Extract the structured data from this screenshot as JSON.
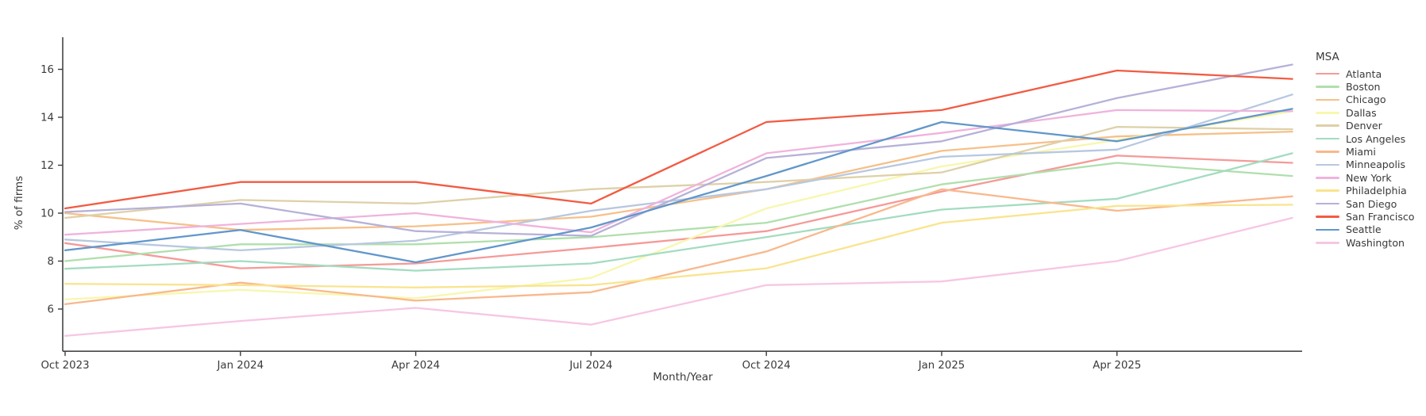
{
  "chart_data": {
    "type": "line",
    "title": "",
    "xlabel": "Month/Year",
    "ylabel": "% of firms",
    "legend_title": "MSA",
    "legend_position": "right",
    "grid": false,
    "axis_color": "#3a3a3a",
    "x": [
      "Oct 2023",
      "Jan 2024",
      "Apr 2024",
      "Jul 2024",
      "Oct 2024",
      "Jan 2025",
      "Apr 2025",
      "Jul 2025"
    ],
    "x_tick_labels": [
      "Oct 2023",
      "Jan 2024",
      "Apr 2024",
      "Jul 2024",
      "Oct 2024",
      "Jan 2025",
      "Apr 2025"
    ],
    "y_ticks": [
      6,
      8,
      10,
      12,
      14,
      16
    ],
    "ylim": [
      4.2,
      17.3
    ],
    "series": [
      {
        "name": "Atlanta",
        "color": "#f59a98",
        "values": [
          8.75,
          7.7,
          7.9,
          8.55,
          9.25,
          10.9,
          12.4,
          12.1
        ]
      },
      {
        "name": "Boston",
        "color": "#b0dfad",
        "values": [
          8.0,
          8.7,
          8.7,
          9.0,
          9.6,
          11.2,
          12.1,
          11.55
        ]
      },
      {
        "name": "Chicago",
        "color": "#f6c08a",
        "values": [
          10.0,
          9.3,
          9.45,
          9.85,
          11.0,
          12.6,
          13.2,
          13.4
        ]
      },
      {
        "name": "Dallas",
        "color": "#f7f7ae",
        "values": [
          6.4,
          6.8,
          6.45,
          7.3,
          10.2,
          11.95,
          13.05,
          14.25
        ]
      },
      {
        "name": "Denver",
        "color": "#ded0a8",
        "values": [
          9.8,
          10.55,
          10.4,
          11.0,
          11.3,
          11.7,
          13.6,
          13.5
        ]
      },
      {
        "name": "Los Angeles",
        "color": "#a3dcc0",
        "values": [
          7.68,
          8.0,
          7.6,
          7.9,
          9.0,
          10.15,
          10.6,
          12.5
        ]
      },
      {
        "name": "Miami",
        "color": "#f8b88c",
        "values": [
          6.2,
          7.1,
          6.35,
          6.7,
          8.4,
          11.0,
          10.1,
          10.7
        ]
      },
      {
        "name": "Minneapolis",
        "color": "#b7c8e0",
        "values": [
          8.9,
          8.45,
          8.85,
          10.1,
          11.0,
          12.35,
          12.65,
          14.95
        ]
      },
      {
        "name": "New York",
        "color": "#f0b3dc",
        "values": [
          9.1,
          9.55,
          10.0,
          9.2,
          12.5,
          13.35,
          14.3,
          14.25
        ]
      },
      {
        "name": "Philadelphia",
        "color": "#f9e48e",
        "values": [
          7.05,
          7.0,
          6.9,
          7.0,
          7.7,
          9.6,
          10.3,
          10.35
        ]
      },
      {
        "name": "San Diego",
        "color": "#b6b1d8",
        "values": [
          10.05,
          10.4,
          9.25,
          9.05,
          12.3,
          13.0,
          14.8,
          16.2
        ]
      },
      {
        "name": "San Francisco",
        "color": "#f25b43",
        "values": [
          10.2,
          11.3,
          11.3,
          10.4,
          13.8,
          14.3,
          15.95,
          15.6
        ]
      },
      {
        "name": "Seattle",
        "color": "#6197cb",
        "values": [
          8.45,
          9.3,
          7.95,
          9.4,
          11.55,
          13.8,
          13.0,
          14.35
        ]
      },
      {
        "name": "Washington",
        "color": "#f7c6e4",
        "values": [
          4.88,
          5.5,
          6.05,
          5.35,
          7.0,
          7.15,
          8.0,
          9.8
        ]
      }
    ]
  }
}
